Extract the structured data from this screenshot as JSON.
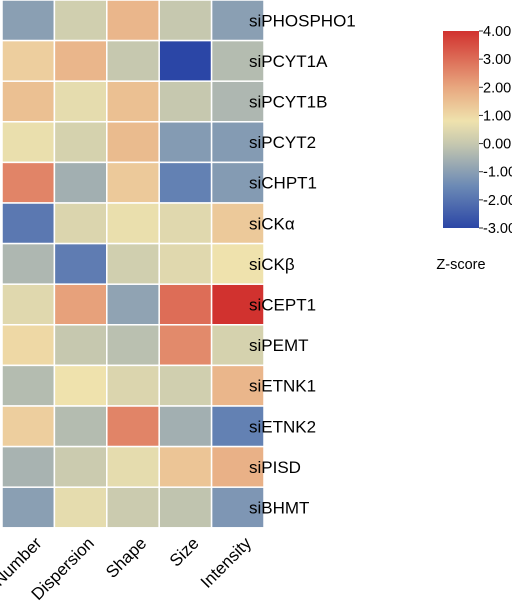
{
  "chart_data": {
    "type": "heatmap",
    "rows": [
      "siPHOSPHO1",
      "siPCYT1A",
      "siPCYT1B",
      "siPCYT2",
      "siCHPT1",
      "siCKα",
      "siCKβ",
      "siCEPT1",
      "siPEMT",
      "siETNK1",
      "siETNK2",
      "siPISD",
      "siBHMT"
    ],
    "columns": [
      "Number",
      "Dispersion",
      "Shape",
      "Size",
      "Intensity"
    ],
    "values": [
      [
        -1.0,
        0.2,
        1.7,
        0.0,
        -1.0
      ],
      [
        1.2,
        1.7,
        0.0,
        -3.0,
        -0.3
      ],
      [
        1.5,
        0.6,
        1.5,
        0.0,
        -0.4
      ],
      [
        0.7,
        0.3,
        1.6,
        -1.1,
        -1.1
      ],
      [
        2.6,
        -0.6,
        1.3,
        -1.7,
        -1.1
      ],
      [
        -1.9,
        0.4,
        0.7,
        0.5,
        1.3
      ],
      [
        -0.4,
        -1.8,
        0.2,
        0.5,
        0.8
      ],
      [
        0.5,
        2.1,
        -0.9,
        3.0,
        4.0
      ],
      [
        1.0,
        0.0,
        -0.2,
        2.5,
        0.3
      ],
      [
        -0.3,
        0.8,
        0.4,
        0.2,
        1.7
      ],
      [
        1.2,
        -0.3,
        2.6,
        -0.6,
        -1.7
      ],
      [
        -0.5,
        0.1,
        0.6,
        1.4,
        1.8
      ],
      [
        -1.0,
        0.6,
        0.1,
        -0.1,
        -1.2
      ]
    ],
    "color_scale": {
      "min": -3.0,
      "max": 4.0,
      "stops": [
        {
          "value": -3.0,
          "color": "#2b46a6"
        },
        {
          "value": -1.5,
          "color": "#6c8ab5"
        },
        {
          "value": 0.0,
          "color": "#c6c8af"
        },
        {
          "value": 0.8,
          "color": "#efe2ad"
        },
        {
          "value": 2.0,
          "color": "#e8a77f"
        },
        {
          "value": 4.0,
          "color": "#d1322f"
        }
      ]
    },
    "legend": {
      "title": "Z-score",
      "ticks": [
        "4.00",
        "3.00",
        "2.00",
        "1.00",
        "0.00",
        "-1.00",
        "-2.00",
        "-3.00"
      ],
      "position": "right"
    },
    "cell_border_color": "#ffffff"
  }
}
